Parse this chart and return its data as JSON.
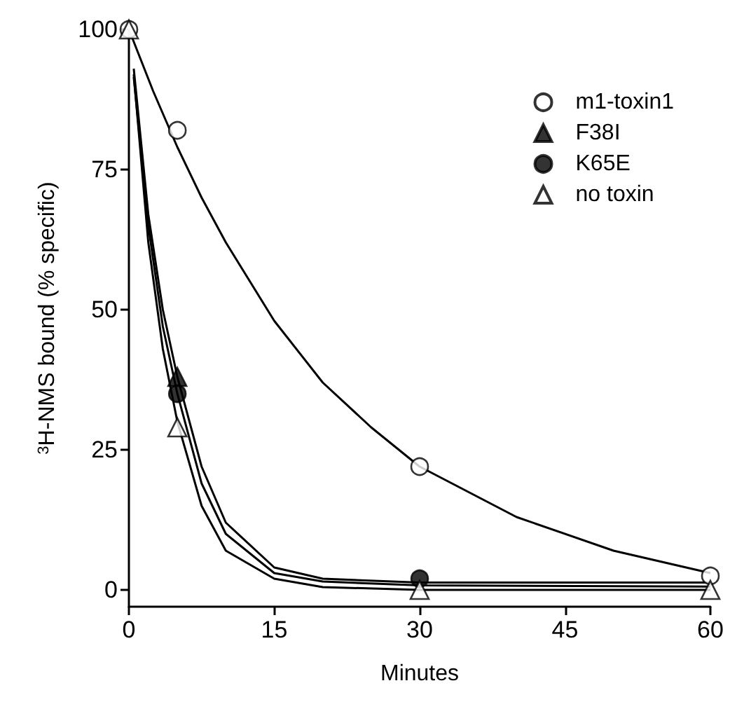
{
  "chart_data": {
    "type": "scatter",
    "xlabel": "Minutes",
    "ylabel": "$^{3}$H-NMS bound (% specific)",
    "xlim": [
      0,
      60
    ],
    "ylim": [
      -3,
      100
    ],
    "xticks": [
      0,
      15,
      30,
      45,
      60
    ],
    "yticks": [
      0,
      25,
      50,
      75,
      100
    ],
    "grid": false,
    "legend": "top right",
    "series": [
      {
        "type": "line",
        "marker": "none",
        "color": "#000000",
        "x": [
          0,
          2.5,
          5,
          7.5,
          10,
          15,
          20,
          25,
          30,
          40,
          50,
          60
        ],
        "values": [
          100,
          89,
          79,
          70,
          62,
          48,
          37,
          29,
          22,
          13,
          7,
          3
        ]
      },
      {
        "type": "line",
        "marker": "none",
        "color": "#000000",
        "x": [
          0.5,
          2,
          3.5,
          5,
          7.5,
          10,
          15,
          20,
          30,
          60
        ],
        "values": [
          93,
          67,
          50,
          38,
          22,
          12,
          4,
          2,
          1.3,
          1.3
        ]
      },
      {
        "type": "line",
        "marker": "none",
        "color": "#000000",
        "x": [
          0.5,
          2,
          3.5,
          5,
          7.5,
          10,
          15,
          20,
          30,
          60
        ],
        "values": [
          91.5,
          65,
          47,
          35,
          19,
          10,
          3,
          1.5,
          0.8,
          0.6
        ]
      },
      {
        "type": "line",
        "marker": "none",
        "color": "#000000",
        "x": [
          0.5,
          2,
          3.5,
          5,
          7.5,
          10,
          15,
          20,
          30,
          60
        ],
        "values": [
          92,
          62,
          43,
          30,
          15,
          7,
          2,
          0.5,
          0,
          0
        ]
      },
      {
        "name": "m1-toxin1",
        "marker": "circle",
        "color": "#ffffff",
        "x": [
          0,
          5,
          30,
          60
        ],
        "values": [
          100,
          82,
          22,
          2.5
        ]
      },
      {
        "name": "F38I",
        "marker": "triangle",
        "color": "#000000",
        "x": [
          5
        ],
        "values": [
          38
        ]
      },
      {
        "name": "K65E",
        "marker": "circle",
        "color": "#000000",
        "x": [
          5,
          30
        ],
        "values": [
          35,
          2
        ]
      },
      {
        "name": "no toxin",
        "marker": "triangle",
        "color": "#ffffff",
        "x": [
          0,
          5,
          30,
          60
        ],
        "values": [
          100,
          29,
          0,
          0
        ]
      }
    ]
  }
}
